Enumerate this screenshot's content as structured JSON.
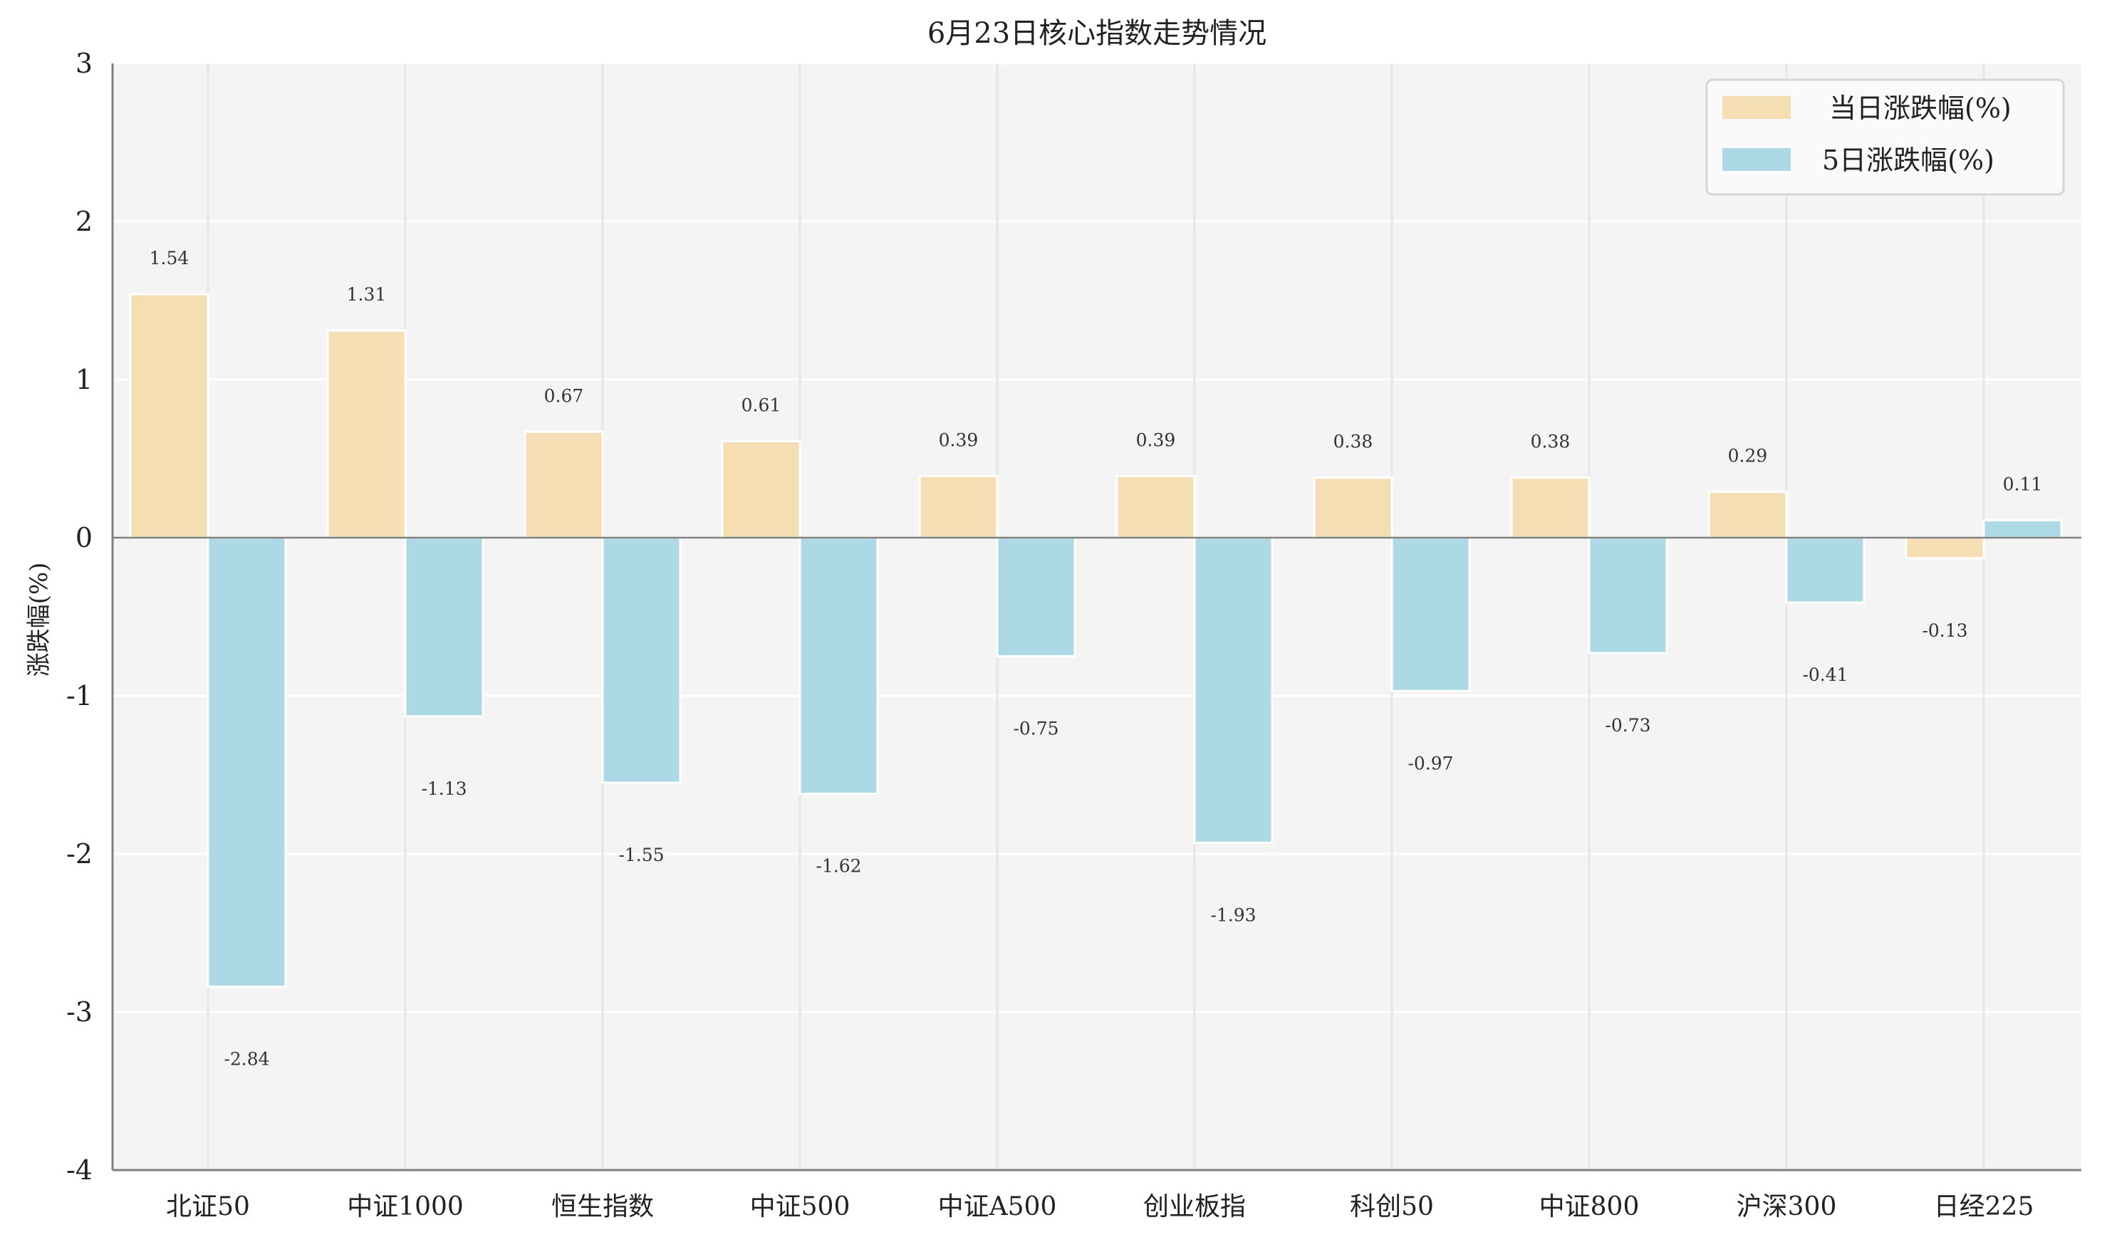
{
  "chart_data": {
    "type": "bar",
    "title": "6月23日核心指数走势情况",
    "xlabel": "",
    "ylabel": "涨跌幅(%)",
    "ylim": [
      -4,
      3
    ],
    "yticks": [
      3,
      2,
      1,
      0,
      -1,
      -2,
      -3,
      -4
    ],
    "grid": true,
    "legend_position": "top-right",
    "categories": [
      "北证50",
      "中证1000",
      "恒生指数",
      "中证500",
      "中证A500",
      "创业板指",
      "科创50",
      "中证800",
      "沪深300",
      "日经225"
    ],
    "series": [
      {
        "name": "当日涨跌幅(%)",
        "color": "#f5deb3",
        "values": [
          1.54,
          1.31,
          0.67,
          0.61,
          0.39,
          0.39,
          0.38,
          0.38,
          0.29,
          -0.13
        ]
      },
      {
        "name": "5日涨跌幅(%)",
        "color": "#add8e6",
        "values": [
          -2.84,
          -1.13,
          -1.55,
          -1.62,
          -0.75,
          -1.93,
          -0.97,
          -0.73,
          -0.41,
          0.11
        ]
      }
    ],
    "colors": {
      "background": "#f4f4f4",
      "axis": "#808080"
    }
  }
}
